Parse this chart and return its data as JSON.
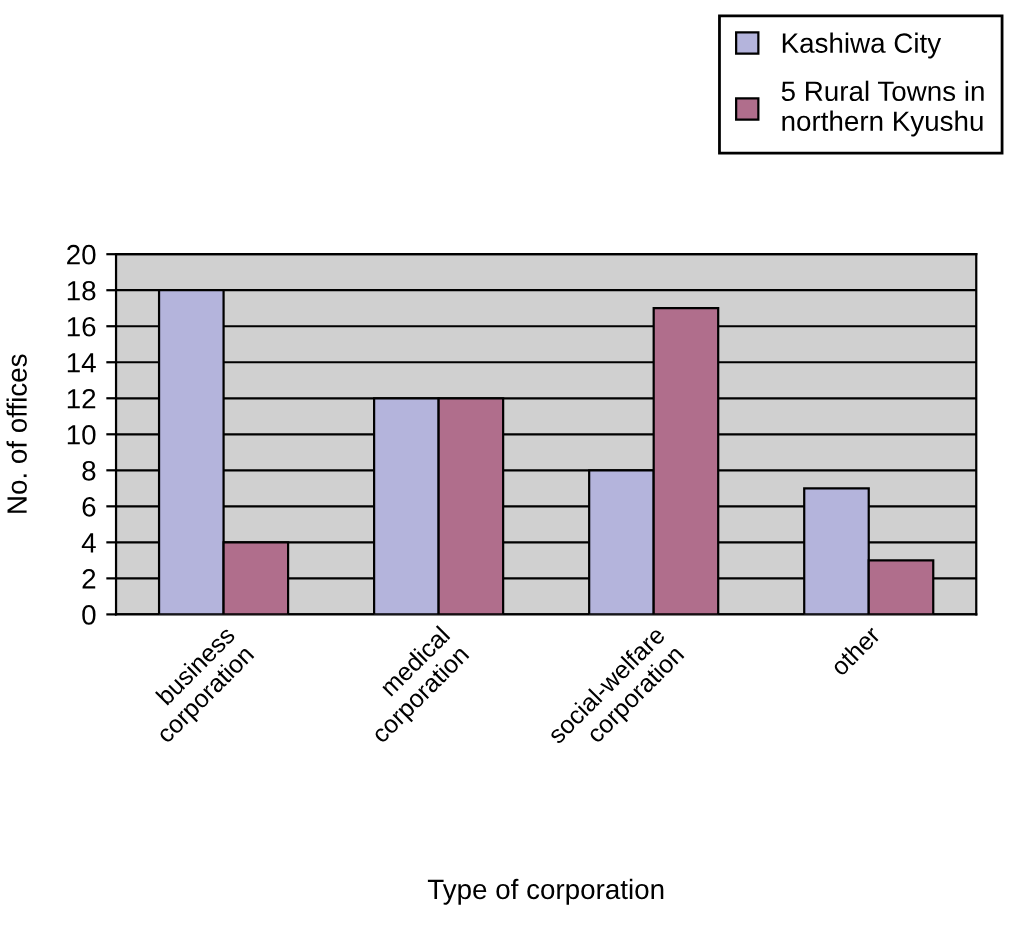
{
  "chart_data": {
    "type": "bar",
    "xlabel": "Type of corporation",
    "ylabel": "No. of offices",
    "categories": [
      "business\ncorporation",
      "medical\ncorporation",
      "social-welfare\ncorporation",
      "other"
    ],
    "series": [
      {
        "name": "Kashiwa City",
        "color": "#b4b4dc",
        "values": [
          18,
          12,
          8,
          7
        ]
      },
      {
        "name": "5 Rural Towns in\nnorthern Kyushu",
        "color": "#b06e8c",
        "values": [
          4,
          12,
          17,
          3
        ]
      }
    ],
    "ylim": [
      0,
      20
    ],
    "yticks": [
      0,
      2,
      4,
      6,
      8,
      10,
      12,
      14,
      16,
      18,
      20
    ],
    "grid": "y",
    "legend": "top right"
  }
}
